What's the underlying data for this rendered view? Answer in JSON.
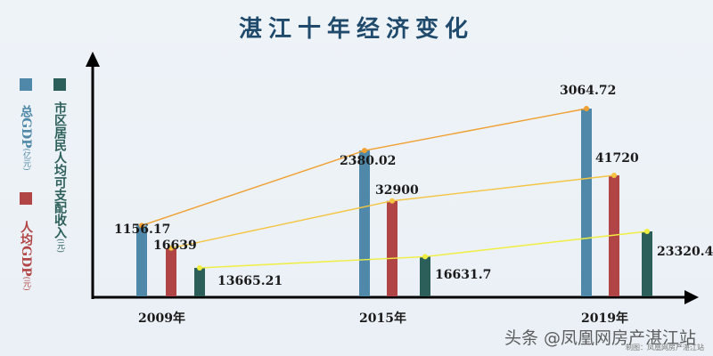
{
  "title": "湛江十年经济变化",
  "legend": [
    {
      "name": "总GDP",
      "unit": "(亿元)",
      "color": "#4f88a8"
    },
    {
      "name": "人均GDP",
      "unit": "(元)",
      "color": "#b14545"
    },
    {
      "name": "市区居民人均可支配收入",
      "unit": "(元)",
      "color": "#2c5f5a"
    }
  ],
  "watermark": {
    "main": "头条 @凤凰网房产湛江站",
    "sub": "制图：凤凰网房产湛江站"
  },
  "chart_data": {
    "type": "bar",
    "title": "湛江十年经济变化",
    "categories": [
      "2009年",
      "2015年",
      "2019年"
    ],
    "series": [
      {
        "name": "总GDP（亿元）",
        "color": "#4f88a8",
        "values": [
          1156.17,
          2380.02,
          3064.72
        ],
        "labels": [
          "1156.17",
          "2380.02",
          "3064.72"
        ],
        "trend_line_color": "#f0a030"
      },
      {
        "name": "人均GDP（元）",
        "color": "#b14545",
        "values": [
          16639,
          32900,
          41720
        ],
        "labels": [
          "16639",
          "32900",
          "41720"
        ],
        "trend_line_color": "#f5c542"
      },
      {
        "name": "市区居民人均可支配收入（元）",
        "color": "#2c5f5a",
        "values": [
          13665.21,
          16631.7,
          23320.4
        ],
        "labels": [
          "13665.21",
          "16631.7",
          "23320.4"
        ],
        "trend_line_color": "#f0ee40"
      }
    ],
    "xlabel": "",
    "ylabel": "",
    "grid": false,
    "legend_position": "left-vertical",
    "trend_lines": true
  }
}
